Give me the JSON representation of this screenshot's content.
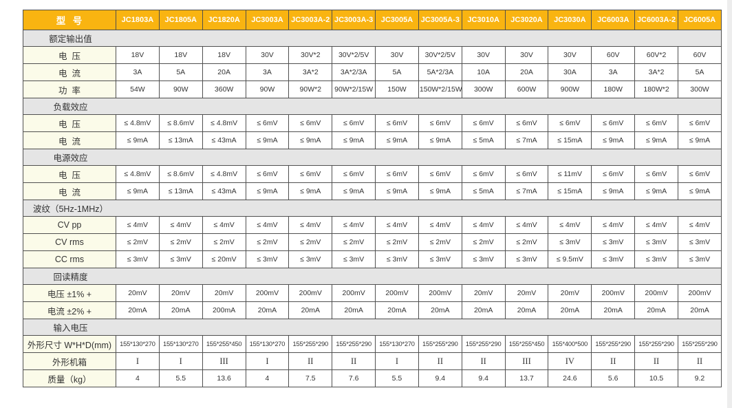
{
  "table": {
    "colors": {
      "header_bg": "#F9B411",
      "header_text": "#FFFFFF",
      "section_bg": "#E5E5E5",
      "label_bg": "#FBFBE9",
      "cell_bg": "#FFFFFF",
      "border": "#4F4F4F",
      "text": "#333333"
    },
    "header": {
      "label": "型  号",
      "models": [
        "JC1803A",
        "JC1805A",
        "JC1820A",
        "JC3003A",
        "JC3003A-2",
        "JC3003A-3",
        "JC3005A",
        "JC3005A-3",
        "JC3010A",
        "JC3020A",
        "JC3030A",
        "JC6003A",
        "JC6003A-2",
        "JC6005A"
      ]
    },
    "rows": [
      {
        "type": "section",
        "key": "rated-output",
        "label": "额定输出值"
      },
      {
        "type": "data",
        "key": "rated-voltage",
        "label": "电  压",
        "values": [
          "18V",
          "18V",
          "18V",
          "30V",
          "30V*2",
          "30V*2/5V",
          "30V",
          "30V*2/5V",
          "30V",
          "30V",
          "30V",
          "60V",
          "60V*2",
          "60V"
        ]
      },
      {
        "type": "data",
        "key": "rated-current",
        "label": "电  流",
        "values": [
          "3A",
          "5A",
          "20A",
          "3A",
          "3A*2",
          "3A*2/3A",
          "5A",
          "5A*2/3A",
          "10A",
          "20A",
          "30A",
          "3A",
          "3A*2",
          "5A"
        ]
      },
      {
        "type": "data",
        "key": "rated-power",
        "label": "功  率",
        "values": [
          "54W",
          "90W",
          "360W",
          "90W",
          "90W*2",
          "90W*2/15W",
          "150W",
          "150W*2/15W",
          "300W",
          "600W",
          "900W",
          "180W",
          "180W*2",
          "300W"
        ]
      },
      {
        "type": "section",
        "key": "load-effect",
        "label": "负载效应"
      },
      {
        "type": "data",
        "key": "load-effect-voltage",
        "label": "电  压",
        "values": [
          "≤ 4.8mV",
          "≤ 8.6mV",
          "≤ 4.8mV",
          "≤ 6mV",
          "≤ 6mV",
          "≤ 6mV",
          "≤ 6mV",
          "≤ 6mV",
          "≤ 6mV",
          "≤ 6mV",
          "≤ 6mV",
          "≤ 6mV",
          "≤ 6mV",
          "≤ 6mV"
        ]
      },
      {
        "type": "data",
        "key": "load-effect-current",
        "label": "电  流",
        "values": [
          "≤ 9mA",
          "≤ 13mA",
          "≤ 43mA",
          "≤ 9mA",
          "≤ 9mA",
          "≤ 9mA",
          "≤ 9mA",
          "≤ 9mA",
          "≤ 5mA",
          "≤ 7mA",
          "≤ 15mA",
          "≤ 9mA",
          "≤ 9mA",
          "≤ 9mA"
        ]
      },
      {
        "type": "section",
        "key": "source-effect",
        "label": "电源效应"
      },
      {
        "type": "data",
        "key": "source-effect-voltage",
        "label": "电  压",
        "values": [
          "≤ 4.8mV",
          "≤ 8.6mV",
          "≤ 4.8mV",
          "≤ 6mV",
          "≤ 6mV",
          "≤ 6mV",
          "≤ 6mV",
          "≤ 6mV",
          "≤ 6mV",
          "≤ 6mV",
          "≤ 11mV",
          "≤ 6mV",
          "≤ 6mV",
          "≤ 6mV"
        ]
      },
      {
        "type": "data",
        "key": "source-effect-current",
        "label": "电  流",
        "values": [
          "≤ 9mA",
          "≤ 13mA",
          "≤ 43mA",
          "≤ 9mA",
          "≤ 9mA",
          "≤ 9mA",
          "≤ 9mA",
          "≤ 9mA",
          "≤ 5mA",
          "≤ 7mA",
          "≤ 15mA",
          "≤ 9mA",
          "≤ 9mA",
          "≤ 9mA"
        ]
      },
      {
        "type": "section",
        "key": "ripple",
        "label": "波纹（5Hz-1MHz）"
      },
      {
        "type": "data",
        "key": "cv-pp",
        "label": "CV pp",
        "values": [
          "≤ 4mV",
          "≤ 4mV",
          "≤ 4mV",
          "≤ 4mV",
          "≤ 4mV",
          "≤ 4mV",
          "≤ 4mV",
          "≤ 4mV",
          "≤ 4mV",
          "≤ 4mV",
          "≤ 4mV",
          "≤ 4mV",
          "≤ 4mV",
          "≤ 4mV"
        ]
      },
      {
        "type": "data",
        "key": "cv-rms",
        "label": "CV rms",
        "values": [
          "≤ 2mV",
          "≤ 2mV",
          "≤ 2mV",
          "≤ 2mV",
          "≤ 2mV",
          "≤ 2mV",
          "≤ 2mV",
          "≤ 2mV",
          "≤ 2mV",
          "≤ 2mV",
          "≤ 3mV",
          "≤ 3mV",
          "≤ 3mV",
          "≤ 3mV"
        ]
      },
      {
        "type": "data",
        "key": "cc-rms",
        "label": "CC rms",
        "values": [
          "≤ 3mV",
          "≤ 3mV",
          "≤ 20mV",
          "≤ 3mV",
          "≤ 3mV",
          "≤ 3mV",
          "≤ 3mV",
          "≤ 3mV",
          "≤ 3mV",
          "≤ 3mV",
          "≤ 9.5mV",
          "≤ 3mV",
          "≤ 3mV",
          "≤ 3mV"
        ]
      },
      {
        "type": "section",
        "key": "readback-accuracy",
        "label": "回读精度"
      },
      {
        "type": "data",
        "key": "readback-voltage",
        "label": "电压 ±1% +",
        "values": [
          "20mV",
          "20mV",
          "20mV",
          "200mV",
          "200mV",
          "200mV",
          "200mV",
          "200mV",
          "20mV",
          "20mV",
          "20mV",
          "200mV",
          "200mV",
          "200mV"
        ]
      },
      {
        "type": "data",
        "key": "readback-current",
        "label": "电流 ±2% +",
        "values": [
          "20mA",
          "20mA",
          "200mA",
          "20mA",
          "20mA",
          "20mA",
          "20mA",
          "20mA",
          "20mA",
          "20mA",
          "20mA",
          "20mA",
          "20mA",
          "20mA"
        ]
      },
      {
        "type": "section",
        "key": "input-voltage",
        "label": "输入电压"
      },
      {
        "type": "data",
        "key": "dimensions",
        "label": "外形尺寸 W*H*D(mm)",
        "small": true,
        "values": [
          "155*130*270",
          "155*130*270",
          "155*255*450",
          "155*130*270",
          "155*255*290",
          "155*255*290",
          "155*130*270",
          "155*255*290",
          "155*255*290",
          "155*255*450",
          "155*400*500",
          "155*255*290",
          "155*255*290",
          "155*255*290"
        ]
      },
      {
        "type": "data",
        "key": "chassis-type",
        "label": "外形机箱",
        "serif": true,
        "values": [
          "I",
          "I",
          "III",
          "I",
          "II",
          "II",
          "I",
          "II",
          "II",
          "III",
          "IV",
          "II",
          "II",
          "II"
        ]
      },
      {
        "type": "data",
        "key": "weight",
        "label": "质量（kg）",
        "values": [
          "4",
          "5.5",
          "13.6",
          "4",
          "7.5",
          "7.6",
          "5.5",
          "9.4",
          "9.4",
          "13.7",
          "24.6",
          "5.6",
          "10.5",
          "9.2"
        ]
      }
    ]
  }
}
